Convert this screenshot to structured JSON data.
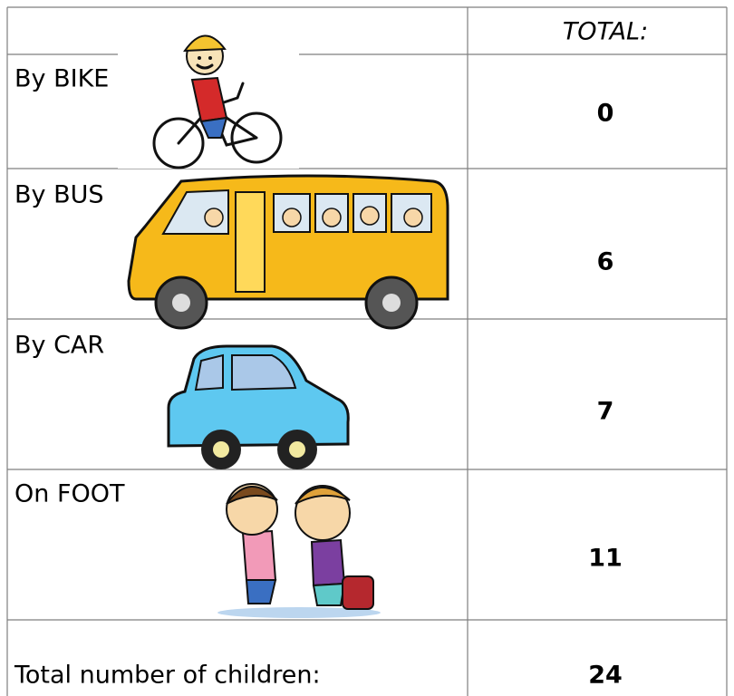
{
  "header": {
    "total_label": "TOTAL:"
  },
  "rows": [
    {
      "label": "By BIKE",
      "total": 0
    },
    {
      "label": "By BUS",
      "total": 6
    },
    {
      "label": "By CAR",
      "total": 7
    },
    {
      "label": "On FOOT",
      "total": 11
    }
  ],
  "footer": {
    "label": "Total number of children:",
    "total": 24
  }
}
